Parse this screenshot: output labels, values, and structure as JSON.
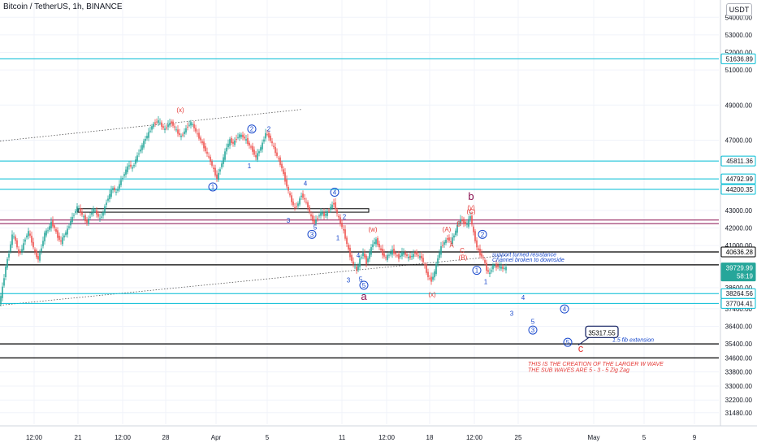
{
  "title": "Bitcoin / TetherUS, 1h, BINANCE",
  "currency": "USDT",
  "colors": {
    "up": "#26a69a",
    "down": "#ef5350",
    "cyan": "#00bcd4",
    "dark_red": "#880e4f",
    "black": "#000000",
    "blue": "#1848cc",
    "red": "#e53935",
    "grid": "#f0f3fa"
  },
  "chart_data": {
    "type": "candlestick",
    "y_ticks": [
      "54000.00",
      "53000.00",
      "52000.00",
      "51000.00",
      "49000.00",
      "47000.00",
      "43000.00",
      "42000.00",
      "41000.00",
      "38600.00",
      "37400.00",
      "36400.00",
      "35400.00",
      "34600.00",
      "33800.00",
      "33000.00",
      "32200.00",
      "31480.00"
    ],
    "x_ticks": [
      "12:00",
      "21",
      "12:00",
      "28",
      "Apr",
      "5",
      "11",
      "12:00",
      "18",
      "12:00",
      "25",
      "May",
      "5",
      "9"
    ],
    "ylim": [
      31100,
      54800
    ],
    "price_path": [
      [
        0,
        37650
      ],
      [
        4,
        38600
      ],
      [
        8,
        39800
      ],
      [
        12,
        40600
      ],
      [
        16,
        41600
      ],
      [
        20,
        41300
      ],
      [
        24,
        40500
      ],
      [
        28,
        40800
      ],
      [
        32,
        41400
      ],
      [
        36,
        41800
      ],
      [
        40,
        41200
      ],
      [
        44,
        40600
      ],
      [
        48,
        40200
      ],
      [
        52,
        40900
      ],
      [
        56,
        41700
      ],
      [
        60,
        41900
      ],
      [
        64,
        42300
      ],
      [
        68,
        42000
      ],
      [
        72,
        41500
      ],
      [
        76,
        41200
      ],
      [
        80,
        41600
      ],
      [
        84,
        41900
      ],
      [
        88,
        42400
      ],
      [
        92,
        42800
      ],
      [
        96,
        43200
      ],
      [
        100,
        42900
      ],
      [
        104,
        42600
      ],
      [
        108,
        42300
      ],
      [
        112,
        42700
      ],
      [
        116,
        43100
      ],
      [
        120,
        42800
      ],
      [
        124,
        42500
      ],
      [
        128,
        42900
      ],
      [
        132,
        43500
      ],
      [
        136,
        43900
      ],
      [
        140,
        44300
      ],
      [
        144,
        44000
      ],
      [
        148,
        44500
      ],
      [
        152,
        44900
      ],
      [
        156,
        45300
      ],
      [
        160,
        45600
      ],
      [
        164,
        45400
      ],
      [
        168,
        45900
      ],
      [
        172,
        46300
      ],
      [
        176,
        46700
      ],
      [
        180,
        47100
      ],
      [
        184,
        47400
      ],
      [
        188,
        47800
      ],
      [
        192,
        48000
      ],
      [
        196,
        48100
      ],
      [
        200,
        47800
      ],
      [
        204,
        47600
      ],
      [
        208,
        47900
      ],
      [
        212,
        48000
      ],
      [
        216,
        47700
      ],
      [
        220,
        47400
      ],
      [
        224,
        47200
      ],
      [
        228,
        47500
      ],
      [
        232,
        47800
      ],
      [
        236,
        48000
      ],
      [
        240,
        47700
      ],
      [
        244,
        47300
      ],
      [
        248,
        47000
      ],
      [
        252,
        46600
      ],
      [
        256,
        46200
      ],
      [
        260,
        45800
      ],
      [
        264,
        45300
      ],
      [
        268,
        44800
      ],
      [
        272,
        45400
      ],
      [
        276,
        46000
      ],
      [
        280,
        46600
      ],
      [
        284,
        47000
      ],
      [
        288,
        46800
      ],
      [
        292,
        47100
      ],
      [
        296,
        47300
      ],
      [
        300,
        47200
      ],
      [
        304,
        47000
      ],
      [
        308,
        46700
      ],
      [
        312,
        46400
      ],
      [
        316,
        46000
      ],
      [
        320,
        46400
      ],
      [
        324,
        46800
      ],
      [
        328,
        47400
      ],
      [
        332,
        47200
      ],
      [
        336,
        46800
      ],
      [
        340,
        46300
      ],
      [
        344,
        45900
      ],
      [
        348,
        45400
      ],
      [
        352,
        44700
      ],
      [
        356,
        44100
      ],
      [
        360,
        43500
      ],
      [
        364,
        43100
      ],
      [
        368,
        43400
      ],
      [
        372,
        43900
      ],
      [
        376,
        43600
      ],
      [
        380,
        43200
      ],
      [
        384,
        42600
      ],
      [
        388,
        42300
      ],
      [
        392,
        42600
      ],
      [
        396,
        42900
      ],
      [
        400,
        42700
      ],
      [
        404,
        42900
      ],
      [
        408,
        43200
      ],
      [
        412,
        43400
      ],
      [
        416,
        42800
      ],
      [
        420,
        42300
      ],
      [
        424,
        41800
      ],
      [
        428,
        41100
      ],
      [
        432,
        40400
      ],
      [
        436,
        39900
      ],
      [
        440,
        39600
      ],
      [
        444,
        40200
      ],
      [
        448,
        40600
      ],
      [
        452,
        40000
      ],
      [
        456,
        40600
      ],
      [
        460,
        41100
      ],
      [
        464,
        41300
      ],
      [
        468,
        40900
      ],
      [
        472,
        40500
      ],
      [
        476,
        40300
      ],
      [
        480,
        40500
      ],
      [
        484,
        40700
      ],
      [
        488,
        40500
      ],
      [
        492,
        40300
      ],
      [
        496,
        40600
      ],
      [
        500,
        40500
      ],
      [
        504,
        40300
      ],
      [
        508,
        40400
      ],
      [
        512,
        40600
      ],
      [
        516,
        40400
      ],
      [
        520,
        40300
      ],
      [
        524,
        39800
      ],
      [
        528,
        39200
      ],
      [
        532,
        39000
      ],
      [
        536,
        39500
      ],
      [
        540,
        40300
      ],
      [
        544,
        40900
      ],
      [
        548,
        41200
      ],
      [
        552,
        41400
      ],
      [
        556,
        41200
      ],
      [
        560,
        41600
      ],
      [
        564,
        42100
      ],
      [
        568,
        42500
      ],
      [
        572,
        42300
      ],
      [
        576,
        42200
      ],
      [
        580,
        42700
      ],
      [
        584,
        41700
      ],
      [
        588,
        40900
      ],
      [
        592,
        40500
      ],
      [
        596,
        40300
      ],
      [
        600,
        39600
      ],
      [
        604,
        39400
      ],
      [
        608,
        39900
      ],
      [
        612,
        39800
      ],
      [
        616,
        39800
      ],
      [
        620,
        39700
      ],
      [
        624,
        39730
      ]
    ],
    "horizontal_levels": [
      {
        "price": 51636.89,
        "color": "cyan",
        "label": "51636.89"
      },
      {
        "price": 45811.36,
        "color": "cyan",
        "label": "45811.36"
      },
      {
        "price": 44792.99,
        "color": "cyan",
        "label": "44792.99"
      },
      {
        "price": 44200.35,
        "color": "cyan",
        "label": "44200.35"
      },
      {
        "price": 42450,
        "color": "dark_red",
        "label": ""
      },
      {
        "price": 42250,
        "color": "dark_red",
        "label": ""
      },
      {
        "price": 40636.28,
        "color": "black",
        "label": "40636.28"
      },
      {
        "price": 39900,
        "color": "black",
        "label": ""
      },
      {
        "price": 38264.56,
        "color": "cyan",
        "label": "38264.56"
      },
      {
        "price": 37704.41,
        "color": "cyan",
        "label": "37704.41"
      },
      {
        "price": 35400,
        "color": "black",
        "label": ""
      },
      {
        "price": 34600,
        "color": "black",
        "label": ""
      }
    ],
    "price_tags": [
      {
        "price": 51636.89,
        "text": "51636.89",
        "style": "cyan"
      },
      {
        "price": 45811.36,
        "text": "45811.36",
        "style": "cyan"
      },
      {
        "price": 44792.99,
        "text": "44792.99",
        "style": "cyan"
      },
      {
        "price": 44200.35,
        "text": "44200.35",
        "style": "cyan"
      },
      {
        "price": 40636.28,
        "text": "40636.28",
        "style": "black"
      },
      {
        "price": 39729.99,
        "text": "39729.99",
        "style": "current",
        "sub": "58:19"
      },
      {
        "price": 38264.56,
        "text": "38264.56",
        "style": "cyan"
      },
      {
        "price": 37704.41,
        "text": "37704.41",
        "style": "cyan"
      }
    ],
    "wave_labels": [
      {
        "text": "(x)",
        "x": 222,
        "price": 48600,
        "color": "red"
      },
      {
        "text": "2",
        "x": 310,
        "price": 47500,
        "color": "blue",
        "circle": true
      },
      {
        "text": "2",
        "x": 331,
        "price": 47500,
        "color": "blue"
      },
      {
        "text": "1",
        "x": 307,
        "price": 45400,
        "color": "blue"
      },
      {
        "text": "1",
        "x": 262,
        "price": 44200,
        "color": "blue",
        "circle": true
      },
      {
        "text": "4",
        "x": 376,
        "price": 44400,
        "color": "blue"
      },
      {
        "text": "4",
        "x": 412,
        "price": 43900,
        "color": "blue",
        "circle": true
      },
      {
        "text": "2",
        "x": 424,
        "price": 42500,
        "color": "blue"
      },
      {
        "text": "3",
        "x": 355,
        "price": 42300,
        "color": "blue"
      },
      {
        "text": "5",
        "x": 388,
        "price": 41900,
        "color": "blue"
      },
      {
        "text": "3",
        "x": 384,
        "price": 41500,
        "color": "blue",
        "circle": true
      },
      {
        "text": "1",
        "x": 416,
        "price": 41300,
        "color": "blue"
      },
      {
        "text": "(w)",
        "x": 459,
        "price": 41800,
        "color": "red"
      },
      {
        "text": "4",
        "x": 441,
        "price": 40300,
        "color": "blue"
      },
      {
        "text": "3",
        "x": 429,
        "price": 38900,
        "color": "blue"
      },
      {
        "text": "5",
        "x": 444,
        "price": 38950,
        "color": "blue"
      },
      {
        "text": "5",
        "x": 448,
        "price": 38600,
        "color": "blue",
        "circle": true
      },
      {
        "text": "a",
        "x": 448,
        "price": 37900,
        "color": "dark_red",
        "big": true
      },
      {
        "text": "(x)",
        "x": 532,
        "price": 38100,
        "color": "red"
      },
      {
        "text": "b",
        "x": 580,
        "price": 43600,
        "color": "dark_red",
        "big": true
      },
      {
        "text": "(y)",
        "x": 580,
        "price": 43050,
        "color": "red"
      },
      {
        "text": "(C)",
        "x": 580,
        "price": 42800,
        "color": "red"
      },
      {
        "text": "(A)",
        "x": 550,
        "price": 41800,
        "color": "red"
      },
      {
        "text": "B",
        "x": 565,
        "price": 42100,
        "color": "red"
      },
      {
        "text": "A",
        "x": 556,
        "price": 40900,
        "color": "red"
      },
      {
        "text": "C",
        "x": 569,
        "price": 40600,
        "color": "red"
      },
      {
        "text": "(B)",
        "x": 570,
        "price": 40200,
        "color": "red"
      },
      {
        "text": "2",
        "x": 594,
        "price": 41500,
        "color": "blue",
        "circle": true
      },
      {
        "text": "1",
        "x": 587,
        "price": 39450,
        "color": "blue",
        "circle": true
      },
      {
        "text": "1",
        "x": 598,
        "price": 38800,
        "color": "blue"
      },
      {
        "text": "4",
        "x": 644,
        "price": 37900,
        "color": "blue"
      },
      {
        "text": "4",
        "x": 695,
        "price": 37250,
        "color": "blue",
        "circle": true
      },
      {
        "text": "3",
        "x": 630,
        "price": 37000,
        "color": "blue"
      },
      {
        "text": "5",
        "x": 656,
        "price": 36550,
        "color": "blue"
      },
      {
        "text": "3",
        "x": 656,
        "price": 36050,
        "color": "blue",
        "circle": true
      },
      {
        "text": "5",
        "x": 699,
        "price": 35350,
        "color": "blue",
        "circle": true
      },
      {
        "text": "c",
        "x": 715,
        "price": 34950,
        "color": "red",
        "big": true
      }
    ]
  },
  "annotations": {
    "note_1": "support turned resistance",
    "note_2": "Channel broken to downside",
    "target_box": "35317.55",
    "fib_text": "1.5 fib extension",
    "bottom_line_1": "THIS IS THE CREATION OF THE LARGER W WAVE",
    "bottom_line_2": "THE SUB WAVES ARE 5 - 3 - 5 Zig Zag"
  }
}
